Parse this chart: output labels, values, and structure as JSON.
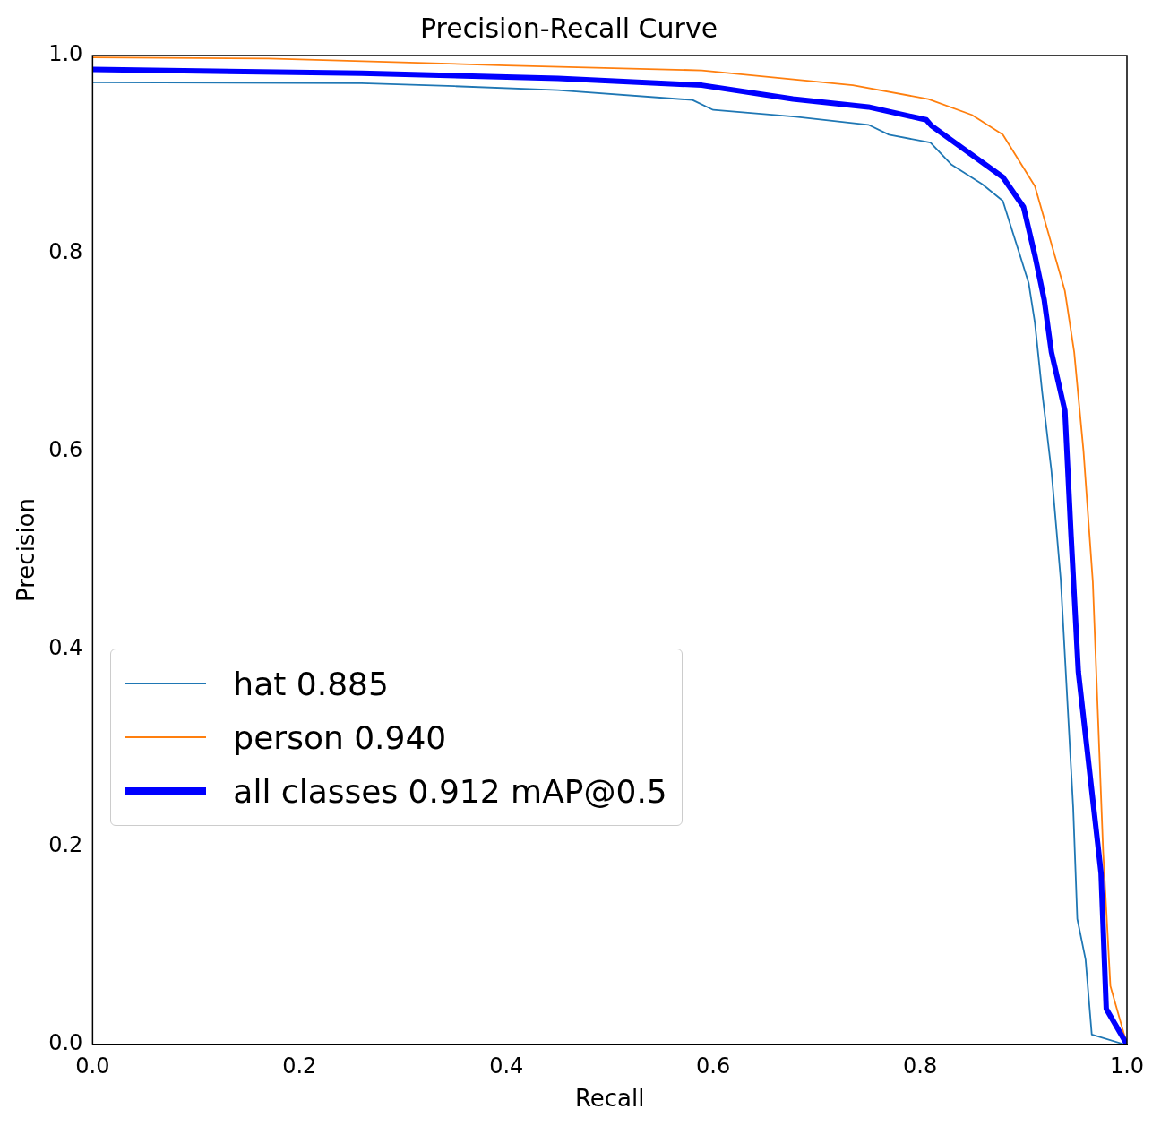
{
  "chart_data": {
    "type": "line",
    "title": "Precision-Recall Curve",
    "xlabel": "Recall",
    "ylabel": "Precision",
    "xlim": [
      0,
      1
    ],
    "ylim": [
      0,
      1
    ],
    "xticks": [
      {
        "value": 0,
        "label": "0.0"
      },
      {
        "value": 0.2,
        "label": "0.2"
      },
      {
        "value": 0.4,
        "label": "0.4"
      },
      {
        "value": 0.6,
        "label": "0.6"
      },
      {
        "value": 0.8,
        "label": "0.8"
      },
      {
        "value": 1,
        "label": "1.0"
      }
    ],
    "yticks": [
      {
        "value": 0,
        "label": "0.0"
      },
      {
        "value": 0.2,
        "label": "0.2"
      },
      {
        "value": 0.4,
        "label": "0.4"
      },
      {
        "value": 0.6,
        "label": "0.6"
      },
      {
        "value": 0.8,
        "label": "0.8"
      },
      {
        "value": 1,
        "label": "1.0"
      }
    ],
    "grid": false,
    "legend": "bottom left",
    "marker": "none",
    "line_style": "solid",
    "series": [
      {
        "name": "hat 0.885",
        "color": "#1f77b4",
        "x": [
          0,
          0.26,
          0.35,
          0.45,
          0.58,
          0.6,
          0.68,
          0.75,
          0.77,
          0.81,
          0.83,
          0.86,
          0.88,
          0.896,
          0.905,
          0.911,
          0.918,
          0.927,
          0.936,
          0.948,
          0.952,
          0.96,
          0.966,
          0.998
        ],
        "values": [
          0.973,
          0.972,
          0.969,
          0.965,
          0.955,
          0.945,
          0.938,
          0.93,
          0.92,
          0.912,
          0.89,
          0.87,
          0.853,
          0.8,
          0.77,
          0.73,
          0.66,
          0.58,
          0.47,
          0.24,
          0.127,
          0.086,
          0.01,
          0.0
        ]
      },
      {
        "name": "person 0.940",
        "color": "#ff7f0e",
        "x": [
          0,
          0.17,
          0.4,
          0.589,
          0.735,
          0.808,
          0.85,
          0.88,
          0.911,
          0.94,
          0.949,
          0.958,
          0.967,
          0.977,
          0.984,
          1.0
        ],
        "values": [
          0.998,
          0.997,
          0.99,
          0.985,
          0.97,
          0.956,
          0.94,
          0.92,
          0.868,
          0.762,
          0.7,
          0.6,
          0.468,
          0.195,
          0.059,
          0.0
        ]
      },
      {
        "name": "all classes 0.912 mAP@0.5",
        "color": "#0000ff",
        "x": [
          0,
          0.26,
          0.45,
          0.589,
          0.677,
          0.75,
          0.806,
          0.811,
          0.88,
          0.9,
          0.911,
          0.92,
          0.927,
          0.94,
          0.946,
          0.953,
          0.975,
          0.98,
          1.0
        ],
        "values": [
          0.986,
          0.982,
          0.977,
          0.97,
          0.956,
          0.948,
          0.935,
          0.929,
          0.877,
          0.847,
          0.798,
          0.753,
          0.7,
          0.641,
          0.514,
          0.377,
          0.173,
          0.036,
          0.0
        ]
      }
    ]
  }
}
